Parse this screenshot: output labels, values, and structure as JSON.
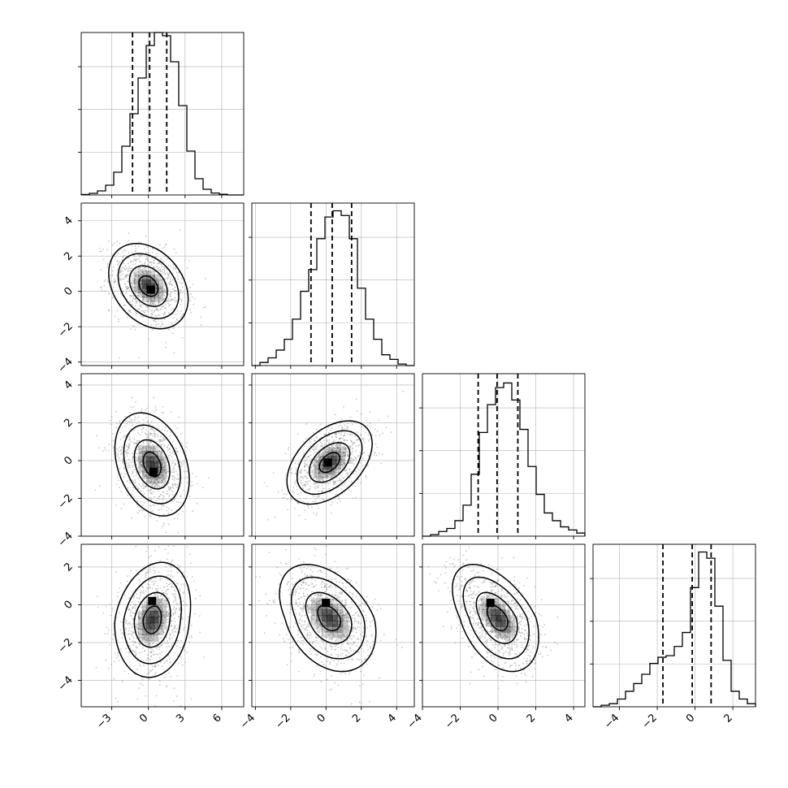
{
  "chart_data": {
    "type": "corner",
    "title": "",
    "n_params": 4,
    "parameters": [
      {
        "label": "",
        "range": [
          -5.5,
          7.8
        ],
        "quantiles": [
          -1.3,
          0.1,
          1.5
        ]
      },
      {
        "label": "",
        "range": [
          -4.2,
          5.0
        ],
        "quantiles": [
          -0.85,
          0.35,
          1.45
        ]
      },
      {
        "label": "",
        "range": [
          -4.0,
          4.6
        ],
        "quantiles": [
          -1.05,
          -0.05,
          1.05
        ]
      },
      {
        "label": "",
        "range": [
          -5.4,
          3.2
        ],
        "quantiles": [
          -1.7,
          -0.15,
          0.85
        ]
      }
    ],
    "tick_labels": {
      "x": [
        [
          {
            "value": -3,
            "text": "−3"
          },
          {
            "value": 0,
            "text": "0"
          },
          {
            "value": 3,
            "text": "3"
          },
          {
            "value": 6,
            "text": "6"
          }
        ],
        [
          {
            "value": -4,
            "text": "−4"
          },
          {
            "value": -2,
            "text": "−2"
          },
          {
            "value": 0,
            "text": "0"
          },
          {
            "value": 2,
            "text": "2"
          },
          {
            "value": 4,
            "text": "4"
          }
        ],
        [
          {
            "value": -4,
            "text": "−4"
          },
          {
            "value": -2,
            "text": "−2"
          },
          {
            "value": 0,
            "text": "0"
          },
          {
            "value": 2,
            "text": "2"
          },
          {
            "value": 4,
            "text": "4"
          }
        ],
        [
          {
            "value": -4,
            "text": "−4"
          },
          {
            "value": -2,
            "text": "−2"
          },
          {
            "value": 0,
            "text": "0"
          },
          {
            "value": 2,
            "text": "2"
          }
        ]
      ],
      "y": [
        null,
        [
          {
            "value": -4,
            "text": "−4"
          },
          {
            "value": -2,
            "text": "−2"
          },
          {
            "value": 0,
            "text": "0"
          },
          {
            "value": 2,
            "text": "2"
          },
          {
            "value": 4,
            "text": "4"
          }
        ],
        [
          {
            "value": -4,
            "text": "−4"
          },
          {
            "value": -2,
            "text": "−2"
          },
          {
            "value": 0,
            "text": "0"
          },
          {
            "value": 2,
            "text": "2"
          },
          {
            "value": 4,
            "text": "4"
          }
        ],
        [
          {
            "value": -4,
            "text": "−4"
          },
          {
            "value": -2,
            "text": "−2"
          },
          {
            "value": 0,
            "text": "0"
          },
          {
            "value": 2,
            "text": "2"
          }
        ]
      ]
    },
    "histograms": [
      {
        "param": 0,
        "y_max": 1.0,
        "bins": [
          -5.5,
          -4.835,
          -4.17,
          -3.505,
          -2.84,
          -2.175,
          -1.51,
          -0.845,
          -0.18,
          0.485,
          1.15,
          1.815,
          2.48,
          3.145,
          3.81,
          4.475,
          5.14,
          5.805,
          6.47,
          7.135,
          7.8
        ],
        "counts": [
          0.003,
          0.01,
          0.025,
          0.06,
          0.14,
          0.3,
          0.5,
          0.72,
          0.92,
          1.0,
          0.98,
          0.82,
          0.55,
          0.27,
          0.1,
          0.035,
          0.012,
          0.004,
          0.0,
          0.0
        ]
      },
      {
        "param": 1,
        "y_max": 1.05,
        "bins": [
          -4.2,
          -3.74,
          -3.28,
          -2.82,
          -2.36,
          -1.9,
          -1.44,
          -0.98,
          -0.52,
          -0.06,
          0.4,
          0.86,
          1.32,
          1.78,
          2.24,
          2.7,
          3.16,
          3.62,
          4.08,
          4.54,
          5.0
        ],
        "counts": [
          0.0,
          0.02,
          0.05,
          0.1,
          0.17,
          0.3,
          0.48,
          0.62,
          0.82,
          0.96,
          1.0,
          0.97,
          0.82,
          0.5,
          0.3,
          0.17,
          0.07,
          0.04,
          0.01,
          0.0
        ]
      },
      {
        "param": 2,
        "y_max": 1.05,
        "bins": [
          -4.0,
          -3.57,
          -3.14,
          -2.71,
          -2.28,
          -1.85,
          -1.42,
          -0.99,
          -0.56,
          -0.13,
          0.3,
          0.73,
          1.16,
          1.59,
          2.02,
          2.45,
          2.88,
          3.31,
          3.74,
          4.17,
          4.6
        ],
        "counts": [
          0.0,
          0.01,
          0.03,
          0.05,
          0.1,
          0.2,
          0.4,
          0.67,
          0.85,
          0.96,
          0.99,
          0.88,
          0.69,
          0.45,
          0.27,
          0.15,
          0.1,
          0.06,
          0.04,
          0.02
        ]
      },
      {
        "param": 3,
        "y_max": 1.05,
        "bins": [
          -5.4,
          -4.97,
          -4.54,
          -4.11,
          -3.68,
          -3.25,
          -2.82,
          -2.39,
          -1.96,
          -1.53,
          -1.1,
          -0.67,
          -0.24,
          0.19,
          0.62,
          1.05,
          1.48,
          1.91,
          2.34,
          2.77,
          3.2
        ],
        "counts": [
          0.0,
          0.01,
          0.02,
          0.05,
          0.1,
          0.15,
          0.21,
          0.28,
          0.32,
          0.33,
          0.39,
          0.48,
          0.77,
          1.0,
          0.96,
          0.65,
          0.3,
          0.1,
          0.05,
          0.02
        ]
      }
    ],
    "contours": [
      {
        "row": 1,
        "col": 0,
        "mean": [
          0.0,
          0.3
        ],
        "sd": [
          1.55,
          1.15
        ],
        "rho": -0.3,
        "warp": 0.0,
        "core": [
          0.2,
          0.1
        ]
      },
      {
        "row": 2,
        "col": 0,
        "mean": [
          0.3,
          -0.2
        ],
        "sd": [
          1.45,
          1.3
        ],
        "rho": -0.3,
        "warp": 0.0,
        "core": [
          0.4,
          -0.6
        ]
      },
      {
        "row": 2,
        "col": 1,
        "mean": [
          0.2,
          -0.1
        ],
        "sd": [
          1.15,
          1.05
        ],
        "rho": 0.45,
        "warp": 0.0,
        "core": [
          0.1,
          -0.1
        ]
      },
      {
        "row": 3,
        "col": 0,
        "mean": [
          0.3,
          -0.8
        ],
        "sd": [
          1.5,
          1.45
        ],
        "rho": 0.25,
        "warp": 0.7,
        "core": [
          0.3,
          0.2
        ]
      },
      {
        "row": 3,
        "col": 1,
        "mean": [
          0.2,
          -0.7
        ],
        "sd": [
          1.35,
          1.35
        ],
        "rho": -0.45,
        "warp": 0.8,
        "core": [
          0.0,
          0.1
        ]
      },
      {
        "row": 3,
        "col": 2,
        "mean": [
          0.0,
          -0.7
        ],
        "sd": [
          1.15,
          1.35
        ],
        "rho": -0.55,
        "warp": 0.8,
        "core": [
          -0.4,
          0.1
        ]
      }
    ],
    "grid": true,
    "colors": {
      "hist": "#000000",
      "points": "#9a9a9a",
      "contour": "#000000",
      "grid": "#b0b0b0",
      "density": "#000000"
    }
  }
}
